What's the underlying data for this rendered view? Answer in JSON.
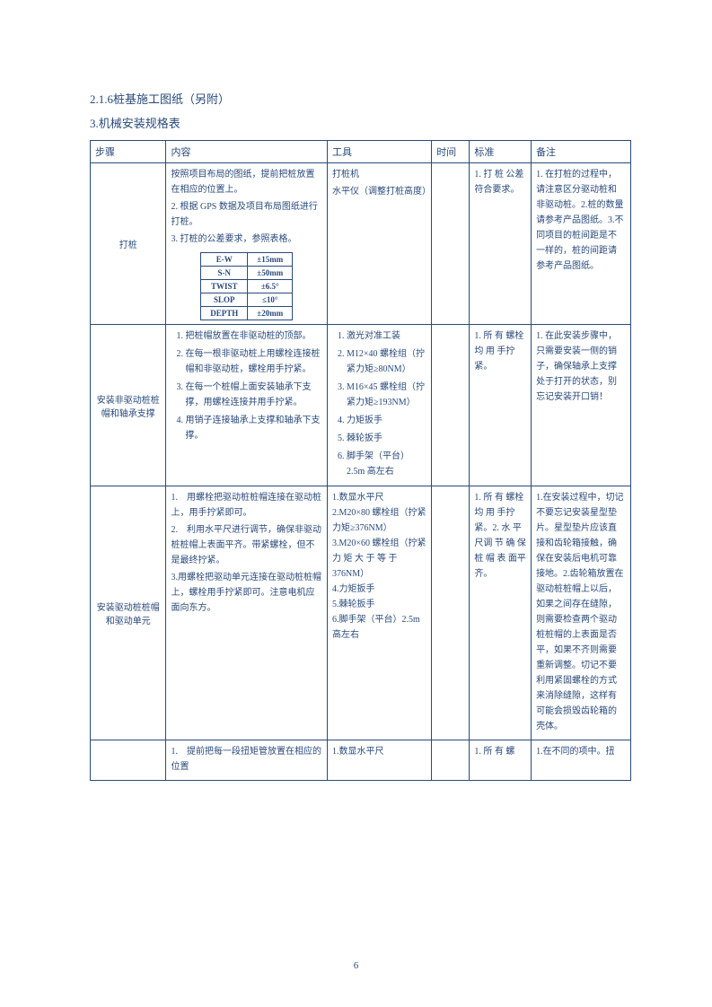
{
  "headings": {
    "h1": "2.1.6桩基施工图纸（另附）",
    "h2": "3.机械安装规格表"
  },
  "headers": {
    "step": "步骤",
    "content": "内容",
    "tool": "工具",
    "time": "时间",
    "std": "标准",
    "note": "备注"
  },
  "rows": [
    {
      "step": "打桩",
      "content": [
        "按照项目布局的图纸，提前把桩放置在相应的位置上。",
        "根据 GPS 数据及项目布局图纸进行打桩。",
        "打桩的公差要求，参照表格。"
      ],
      "tolerance": [
        [
          "E-W",
          "±15mm"
        ],
        [
          "S-N",
          "±50mm"
        ],
        [
          "TWIST",
          "±6.5°"
        ],
        [
          "SLOP",
          "≤10°"
        ],
        [
          "DEPTH",
          "±20mm"
        ]
      ],
      "tool": [
        "打桩机",
        "水平仪（调整打桩高度）"
      ],
      "time": "",
      "std": "1. 打 桩 公差符合要求。",
      "note": "1. 在打桩的过程中，请注意区分驱动桩和非驱动桩。2.桩的数量请参考产品图纸。3.不同项目的桩间距是不一样的，桩的间距请参考产品图纸。"
    },
    {
      "step": "安装非驱动桩桩帽和轴承支撑",
      "content": [
        "把桩帽放置在非驱动桩的顶部。",
        "在每一根非驱动桩上用螺栓连接桩帽和非驱动桩，螺栓用手拧紧。",
        "在每一个桩帽上面安装轴承下支撑，用螺栓连接并用手拧紧。",
        "用销子连接轴承上支撑和轴承下支撑。"
      ],
      "tool": [
        "激光对准工装",
        "M12×40 螺栓组（拧紧力矩≥80NM）",
        "M16×45 螺栓组（拧紧力矩≥193NM）",
        "力矩扳手",
        "棘轮扳手",
        "脚手架（平台）2.5m 高左右"
      ],
      "time": "",
      "std": "1. 所 有 螺栓 均 用 手拧紧。",
      "note": "1. 在此安装步骤中，只需要安装一侧的销子，确保轴承上支撑处于打开的状态，别忘记安装开口销！"
    },
    {
      "step": "安装驱动桩桩帽和驱动单元",
      "content": [
        "用螺栓把驱动桩桩帽连接在驱动桩上，用手拧紧即可。",
        "利用水平尺进行调节，确保非驱动桩桩帽上表面平齐。带紧螺栓，但不是最终拧紧。",
        "用螺栓把驱动单元连接在驱动桩桩帽上，螺栓用手拧紧即可。注意电机应面向东方。"
      ],
      "content_prefix": [
        "1.　",
        "2.　",
        "3."
      ],
      "tool_raw": "1.数显水平尺\n2.M20×80 螺栓组（拧紧力矩≥376NM）\n3.M20×60 螺栓组（拧紧 力 矩 大 于 等 于376NM）\n4.力矩扳手\n5.棘轮扳手\n6.脚手架（平台）2.5m高左右",
      "time": "",
      "std": "1. 所 有 螺栓 均 用 手拧紧。2. 水 平 尺调 节 确 保桩 帽 表 面平齐。",
      "note": "1.在安装过程中，切记不要忘记安装星型垫片。星型垫片应该直接和齿轮箱接触，确保在安装后电机可靠接地。2.齿轮箱放置在驱动桩桩帽上以后，如果之间存在缝隙，则需要检查两个驱动桩桩帽的上表面是否平，如果不齐则需要重新调整。切记不要利用紧固螺栓的方式来消除缝隙，这样有可能会损毁齿轮箱的壳体。"
    },
    {
      "step": "",
      "content_raw": "1.　提前把每一段扭矩管放置在相应的位置",
      "tool_raw": "1.数显水平尺",
      "time": "",
      "std": "1. 所 有 螺",
      "note": "1.在不同的项中。扭"
    }
  ],
  "colors": {
    "text": "#2a4a7a",
    "border": "#2a4a7a",
    "background": "#ffffff"
  },
  "page_number": "6"
}
